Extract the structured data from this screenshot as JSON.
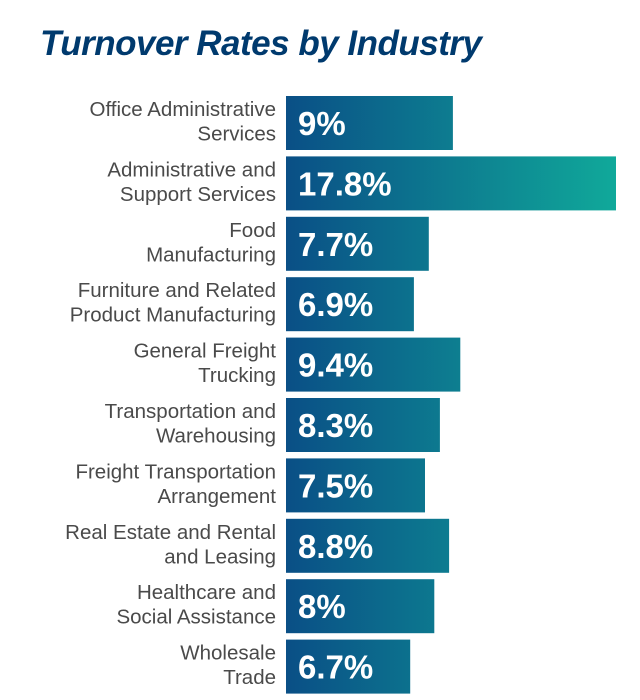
{
  "chart_data": {
    "type": "bar",
    "orientation": "horizontal",
    "title": "Turnover Rates by Industry",
    "categories": [
      [
        "Office Administrative",
        "Services"
      ],
      [
        "Administrative and",
        "Support Services"
      ],
      [
        "Food",
        "Manufacturing"
      ],
      [
        "Furniture and Related",
        "Product Manufacturing"
      ],
      [
        "General Freight",
        "Trucking"
      ],
      [
        "Transportation and",
        "Warehousing"
      ],
      [
        "Freight Transportation",
        "Arrangement"
      ],
      [
        "Real Estate and Rental",
        "and Leasing"
      ],
      [
        "Healthcare and",
        "Social Assistance"
      ],
      [
        "Wholesale",
        "Trade"
      ]
    ],
    "values": [
      9,
      17.8,
      7.7,
      6.9,
      9.4,
      8.3,
      7.5,
      8.8,
      8,
      6.7
    ],
    "value_labels": [
      "9%",
      "17.8%",
      "7.7%",
      "6.9%",
      "9.4%",
      "8.3%",
      "7.5%",
      "8.8%",
      "8%",
      "6.7%"
    ],
    "unit": "%",
    "xlim": [
      0,
      17.8
    ],
    "grid": false,
    "legend": "none",
    "colors": {
      "title": "#003a6e",
      "bar_start": "#0a4f86",
      "bar_end": "#10a99a",
      "label": "#4a4a4a",
      "bar_text": "#ffffff"
    }
  }
}
